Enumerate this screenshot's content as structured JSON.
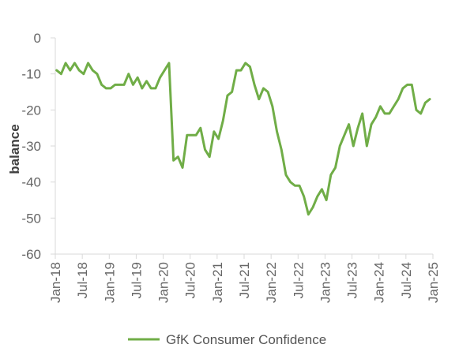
{
  "chart_data": {
    "type": "line",
    "title": "",
    "xlabel": "",
    "ylabel": "balance",
    "ylim": [
      -60,
      0
    ],
    "yticks": [
      0,
      -10,
      -20,
      -30,
      -40,
      -50,
      -60
    ],
    "xtick_labels": [
      "Jan-18",
      "Jul-18",
      "Jan-19",
      "Jul-19",
      "Jan-20",
      "Jul-20",
      "Jan-21",
      "Jul-21",
      "Jan-22",
      "Jul-22",
      "Jan-23",
      "Jul-23",
      "Jan-24",
      "Jul-24",
      "Jan-25"
    ],
    "grid": false,
    "legend_position": "bottom",
    "line_color": "#70ad47",
    "series": [
      {
        "name": "GfK Consumer Confidence",
        "color": "#70ad47",
        "x": [
          "Jan-18",
          "Feb-18",
          "Mar-18",
          "Apr-18",
          "May-18",
          "Jun-18",
          "Jul-18",
          "Aug-18",
          "Sep-18",
          "Oct-18",
          "Nov-18",
          "Dec-18",
          "Jan-19",
          "Feb-19",
          "Mar-19",
          "Apr-19",
          "May-19",
          "Jun-19",
          "Jul-19",
          "Aug-19",
          "Sep-19",
          "Oct-19",
          "Nov-19",
          "Dec-19",
          "Jan-20",
          "Feb-20",
          "Mar-20",
          "Apr-20",
          "May-20",
          "Jun-20",
          "Jul-20",
          "Aug-20",
          "Sep-20",
          "Oct-20",
          "Nov-20",
          "Dec-20",
          "Jan-21",
          "Feb-21",
          "Mar-21",
          "Apr-21",
          "May-21",
          "Jun-21",
          "Jul-21",
          "Aug-21",
          "Sep-21",
          "Oct-21",
          "Nov-21",
          "Dec-21",
          "Jan-22",
          "Feb-22",
          "Mar-22",
          "Apr-22",
          "May-22",
          "Jun-22",
          "Jul-22",
          "Aug-22",
          "Sep-22",
          "Oct-22",
          "Nov-22",
          "Dec-22",
          "Jan-23",
          "Feb-23",
          "Mar-23",
          "Apr-23",
          "May-23",
          "Jun-23",
          "Jul-23",
          "Aug-23",
          "Sep-23",
          "Oct-23",
          "Nov-23",
          "Dec-23",
          "Jan-24",
          "Feb-24",
          "Mar-24",
          "Apr-24",
          "May-24",
          "Jun-24",
          "Jul-24",
          "Aug-24",
          "Sep-24",
          "Oct-24",
          "Nov-24",
          "Dec-24"
        ],
        "values": [
          -9,
          -10,
          -7,
          -9,
          -7,
          -9,
          -10,
          -7,
          -9,
          -10,
          -13,
          -14,
          -14,
          -13,
          -13,
          -13,
          -10,
          -13,
          -11,
          -14,
          -12,
          -14,
          -14,
          -11,
          -9,
          -7,
          -34,
          -33,
          -36,
          -27,
          -27,
          -27,
          -25,
          -31,
          -33,
          -26,
          -28,
          -23,
          -16,
          -15,
          -9,
          -9,
          -7,
          -8,
          -13,
          -17,
          -14,
          -15,
          -19,
          -26,
          -31,
          -38,
          -40,
          -41,
          -41,
          -44,
          -49,
          -47,
          -44,
          -42,
          -45,
          -38,
          -36,
          -30,
          -27,
          -24,
          -30,
          -25,
          -21,
          -30,
          -24,
          -22,
          -19,
          -21,
          -21,
          -19,
          -17,
          -14,
          -13,
          -13,
          -20,
          -21,
          -18,
          -17
        ]
      }
    ]
  }
}
